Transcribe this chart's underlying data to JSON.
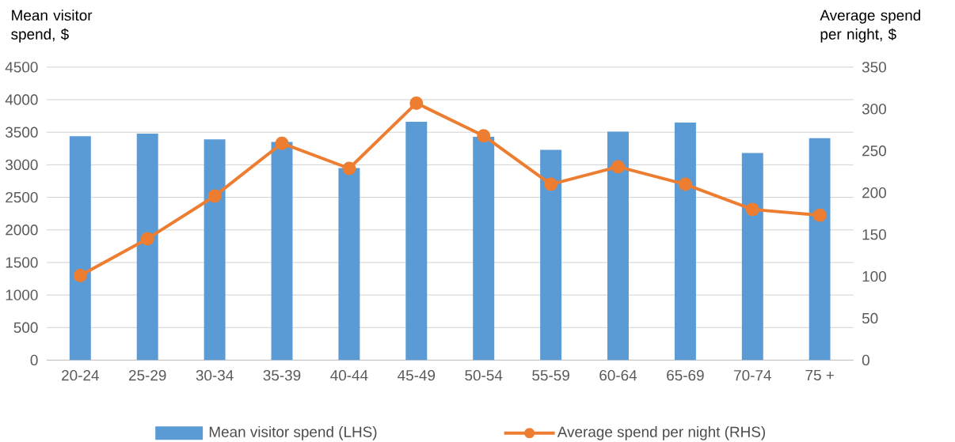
{
  "chart_data": {
    "type": "bar",
    "ylabel": "Mean visitor spend, $",
    "y2label": "Average spend per night, $",
    "categories": [
      "20-24",
      "25-29",
      "30-34",
      "35-39",
      "40-44",
      "45-49",
      "50-54",
      "55-59",
      "60-64",
      "65-69",
      "70-74",
      "75 +"
    ],
    "series": [
      {
        "name": "Mean visitor spend (LHS)",
        "color": "#5b9bd5",
        "values": [
          3440,
          3480,
          3390,
          3350,
          2950,
          3660,
          3430,
          3230,
          3510,
          3650,
          3180,
          3410
        ]
      },
      {
        "name": "Average spend per night (RHS)",
        "type": "line",
        "axis": "y2",
        "color": "#ed7d31",
        "marker": "circle",
        "values": [
          101,
          145,
          196,
          259,
          229,
          307,
          268,
          210,
          231,
          210,
          180,
          173
        ]
      }
    ],
    "ylim": [
      0,
      4500
    ],
    "yticks": [
      0,
      500,
      1000,
      1500,
      2000,
      2500,
      3000,
      3500,
      4000,
      4500
    ],
    "y2lim": [
      0,
      350
    ],
    "y2ticks": [
      0,
      50,
      100,
      150,
      200,
      250,
      300,
      350
    ],
    "grid": "y",
    "legend": "bottom"
  }
}
